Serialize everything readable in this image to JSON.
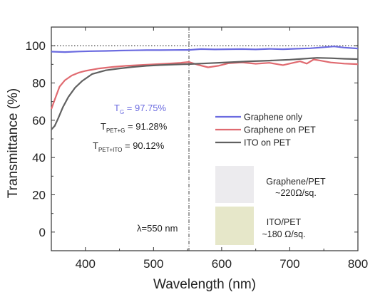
{
  "chart_data": {
    "type": "line",
    "xlabel": "Wavelength (nm)",
    "ylabel": "Transmittance (%)",
    "xlim": [
      350,
      800
    ],
    "ylim": [
      -10,
      110
    ],
    "x_ticks": [
      400,
      500,
      600,
      700,
      800
    ],
    "y_ticks": [
      0,
      20,
      40,
      60,
      80,
      100
    ],
    "grid": false,
    "legend_placement": "center-right",
    "reference_line_y": 100,
    "marker_wavelength": 552,
    "series": [
      {
        "name": "Graphene only",
        "color": "#6b6be0",
        "x": [
          350,
          370,
          390,
          410,
          430,
          450,
          470,
          490,
          510,
          530,
          552,
          570,
          590,
          610,
          630,
          650,
          670,
          690,
          710,
          730,
          750,
          765,
          780,
          800
        ],
        "y": [
          96.8,
          96.6,
          96.9,
          97.1,
          97.2,
          97.4,
          97.5,
          97.6,
          97.6,
          97.7,
          97.75,
          98.2,
          98.0,
          98.1,
          98.2,
          98.0,
          98.3,
          98.1,
          98.4,
          98.6,
          99.2,
          99.6,
          99.0,
          98.5
        ]
      },
      {
        "name": "Graphene on PET",
        "color": "#e06a70",
        "x": [
          350,
          356,
          362,
          370,
          380,
          390,
          400,
          420,
          440,
          460,
          480,
          500,
          520,
          540,
          552,
          565,
          580,
          595,
          610,
          630,
          650,
          670,
          690,
          705,
          715,
          725,
          735,
          745,
          760,
          780,
          800
        ],
        "y": [
          66,
          72,
          78,
          81.5,
          84,
          85.5,
          86.5,
          87.8,
          88.6,
          89.2,
          89.6,
          90.0,
          90.4,
          90.8,
          91.28,
          89.8,
          88.4,
          89.2,
          90.6,
          91.0,
          90.3,
          90.8,
          89.6,
          90.8,
          91.6,
          90.4,
          92.6,
          92.0,
          91.0,
          90.4,
          90.1
        ]
      },
      {
        "name": "ITO on PET",
        "color": "#606060",
        "x": [
          350,
          355,
          360,
          367,
          375,
          385,
          395,
          410,
          430,
          450,
          470,
          490,
          510,
          530,
          552,
          580,
          610,
          640,
          670,
          700,
          720,
          740,
          760,
          780,
          800
        ],
        "y": [
          55,
          57,
          61,
          67,
          72.5,
          77.5,
          81,
          84.8,
          86.8,
          87.8,
          88.6,
          89.2,
          89.6,
          89.9,
          90.12,
          90.6,
          91.1,
          91.6,
          92.0,
          92.5,
          93.0,
          93.5,
          93.3,
          93.0,
          92.8
        ]
      }
    ],
    "annotations": {
      "t_g": {
        "label": "T",
        "sub": "G",
        "value": " = 97.75%"
      },
      "t_pet_g": {
        "label": "T",
        "sub": "PET+G",
        "value": " = 91.28%"
      },
      "t_pet_ito": {
        "label": "T",
        "sub": "PET+ITO",
        "value": " = 90.12%"
      },
      "lambda": "λ=550 nm"
    },
    "inset_samples": [
      {
        "label_line1": "Graphene/PET",
        "label_line2": "~220Ω/sq.",
        "color": "#ecebee"
      },
      {
        "label_line1": "ITO/PET",
        "label_line2": "~180 Ω/sq.",
        "color": "#e6e7c9"
      }
    ]
  }
}
